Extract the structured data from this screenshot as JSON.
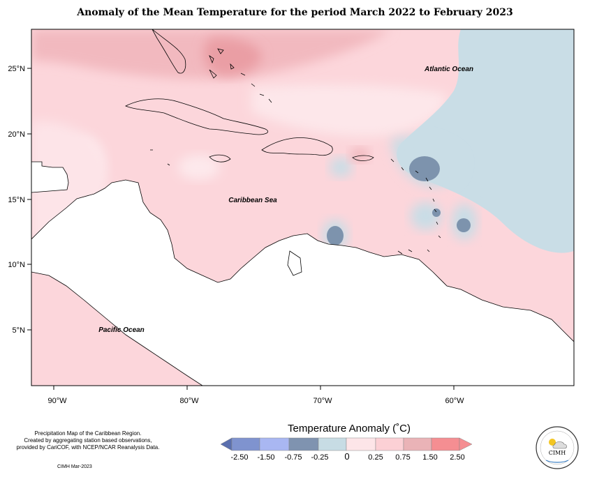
{
  "title": "Anomaly of the Mean Temperature for the period March 2022 to February 2023",
  "map": {
    "lat_ticks": [
      "25°N",
      "20°N",
      "15°N",
      "10°N",
      "5°N"
    ],
    "lon_ticks": [
      "90°W",
      "80°W",
      "70°W",
      "60°W"
    ],
    "region_labels": [
      "Atlantic Ocean",
      "Caribbean Sea",
      "Pacific Ocean"
    ]
  },
  "legend": {
    "title": "Temperature Anomaly (˚C)",
    "tick_labels": [
      "-2.50",
      "-1.50",
      "-0.75",
      "-0.25",
      "0",
      "0.25",
      "0.75",
      "1.50",
      "2.50"
    ],
    "colors": [
      "#5a6fae",
      "#7f93cf",
      "#a9b7f2",
      "#7f93b0",
      "#c7dce4",
      "#fde5e8",
      "#fcd0d5",
      "#eab3b7",
      "#f58e92",
      "#f58e92"
    ]
  },
  "credits": {
    "lines": [
      "Precipitation Map of the Caribbean Region.",
      "Created by aggregating station based observations,",
      "provided by CariCOF, with NCEP/NCAR Reanalysis Data."
    ],
    "date": "CIMH Mar-2023"
  },
  "logo": {
    "text": "CIMH"
  }
}
